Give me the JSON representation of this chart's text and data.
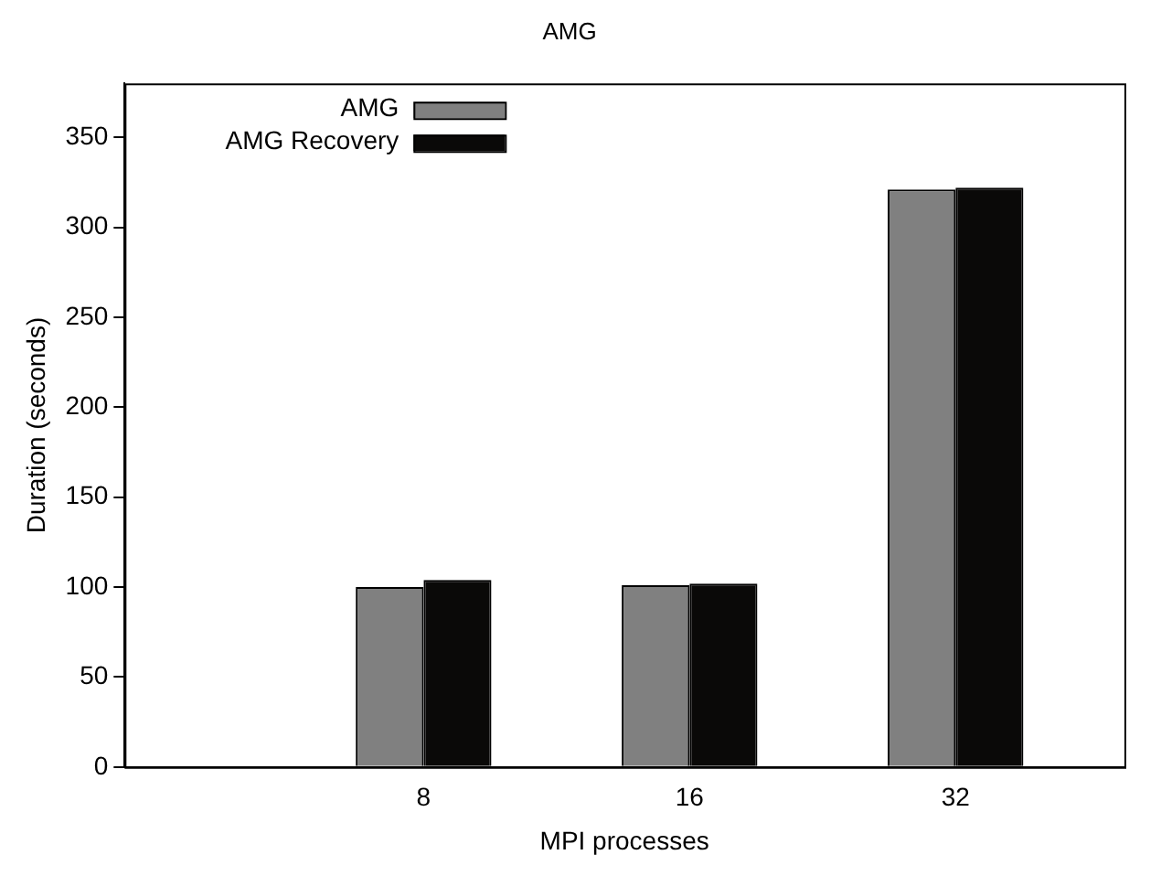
{
  "chart_data": {
    "type": "bar",
    "title": "AMG",
    "xlabel": "MPI processes",
    "ylabel": "Duration (seconds)",
    "categories": [
      "8",
      "16",
      "32"
    ],
    "series": [
      {
        "name": "AMG",
        "color": "#808080",
        "values": [
          100,
          101,
          321
        ]
      },
      {
        "name": "AMG Recovery",
        "color": "#0a0908",
        "values": [
          104,
          102,
          322
        ]
      }
    ],
    "ylim": [
      0,
      380
    ],
    "yticks": [
      0,
      50,
      100,
      150,
      200,
      250,
      300,
      350
    ],
    "grid": false,
    "legend": "top left"
  }
}
